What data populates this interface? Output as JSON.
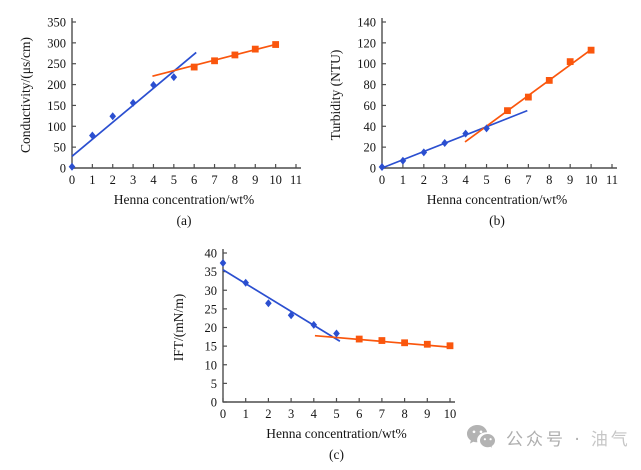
{
  "colors": {
    "low_series": "#2b4fd0",
    "high_series": "#fa560d",
    "axis": "#4d4d4d",
    "text": "#141414",
    "watermark_primary": "#aeaeae",
    "watermark_secondary": "#c6c6c6"
  },
  "watermark": {
    "icon": "wechat-icon",
    "prefix": "公众号 · ",
    "suffix": "油气"
  },
  "chart_data": [
    {
      "id": "a",
      "type": "scatter",
      "caption": "(a)",
      "xlabel": "Henna concentration/wt%",
      "ylabel": "Conductivity/(μs/cm)",
      "xlim": [
        0,
        11
      ],
      "ylim": [
        0,
        350
      ],
      "xticks": [
        0,
        1,
        2,
        3,
        4,
        5,
        6,
        7,
        8,
        9,
        10,
        11
      ],
      "yticks": [
        0,
        50,
        100,
        150,
        200,
        250,
        300,
        350
      ],
      "grid": false,
      "legend": "none",
      "series": [
        {
          "name": "low-concentration-points",
          "marker": "diamond",
          "color": "#2b4fd0",
          "points": [
            [
              0,
              3
            ],
            [
              1,
              78
            ],
            [
              2,
              124
            ],
            [
              3,
              156
            ],
            [
              4,
              199
            ],
            [
              5,
              218
            ]
          ]
        },
        {
          "name": "high-concentration-points",
          "marker": "square",
          "color": "#fa560d",
          "points": [
            [
              6,
              242
            ],
            [
              7,
              257
            ],
            [
              8,
              271
            ],
            [
              9,
              285
            ],
            [
              10,
              296
            ]
          ]
        }
      ],
      "trendlines": [
        {
          "name": "low-region-fit",
          "color": "#2b4fd0",
          "from": [
            0,
            28
          ],
          "to": [
            6.1,
            277
          ]
        },
        {
          "name": "high-region-fit",
          "color": "#fa560d",
          "from": [
            3.95,
            220
          ],
          "to": [
            10.15,
            298
          ]
        }
      ]
    },
    {
      "id": "b",
      "type": "scatter",
      "caption": "(b)",
      "xlabel": "Henna concentration/wt%",
      "ylabel": "Turbidity (NTU)",
      "xlim": [
        0,
        11
      ],
      "ylim": [
        0,
        140
      ],
      "xticks": [
        0,
        1,
        2,
        3,
        4,
        5,
        6,
        7,
        8,
        9,
        10,
        11
      ],
      "yticks": [
        0,
        20,
        40,
        60,
        80,
        100,
        120,
        140
      ],
      "grid": false,
      "legend": "none",
      "series": [
        {
          "name": "low-concentration-points",
          "marker": "diamond",
          "color": "#2b4fd0",
          "points": [
            [
              0,
              1
            ],
            [
              1,
              7
            ],
            [
              2,
              15
            ],
            [
              3,
              24
            ],
            [
              4,
              33
            ],
            [
              5,
              38
            ]
          ]
        },
        {
          "name": "high-concentration-points",
          "marker": "square",
          "color": "#fa560d",
          "points": [
            [
              6,
              55
            ],
            [
              7,
              68
            ],
            [
              8,
              84
            ],
            [
              9,
              102
            ],
            [
              10,
              113
            ]
          ]
        }
      ],
      "trendlines": [
        {
          "name": "low-region-fit",
          "color": "#2b4fd0",
          "from": [
            0,
            0
          ],
          "to": [
            6.95,
            55
          ]
        },
        {
          "name": "high-region-fit",
          "color": "#fa560d",
          "from": [
            3.97,
            25
          ],
          "to": [
            10.1,
            115
          ]
        }
      ]
    },
    {
      "id": "c",
      "type": "scatter",
      "caption": "(c)",
      "xlabel": "Henna concentration/wt%",
      "ylabel": "IFT/(mN/m)",
      "xlim": [
        0,
        10
      ],
      "ylim": [
        0,
        40
      ],
      "xticks": [
        0,
        1,
        2,
        3,
        4,
        5,
        6,
        7,
        8,
        9,
        10
      ],
      "yticks": [
        0,
        5,
        10,
        15,
        20,
        25,
        30,
        35,
        40
      ],
      "grid": false,
      "legend": "none",
      "series": [
        {
          "name": "low-concentration-points",
          "marker": "diamond",
          "color": "#2b4fd0",
          "points": [
            [
              0,
              37.3
            ],
            [
              1,
              32
            ],
            [
              2,
              26.5
            ],
            [
              3,
              23.3
            ],
            [
              4,
              20.7
            ],
            [
              5,
              18.4
            ]
          ]
        },
        {
          "name": "high-concentration-points",
          "marker": "square",
          "color": "#fa560d",
          "points": [
            [
              6,
              16.9
            ],
            [
              7,
              16.5
            ],
            [
              8,
              15.9
            ],
            [
              9,
              15.5
            ],
            [
              10,
              15.1
            ]
          ]
        }
      ],
      "trendlines": [
        {
          "name": "low-region-fit",
          "color": "#2b4fd0",
          "from": [
            0,
            35.5
          ],
          "to": [
            5.15,
            16.3
          ]
        },
        {
          "name": "high-region-fit",
          "color": "#fa560d",
          "from": [
            4.05,
            17.8
          ],
          "to": [
            10.05,
            14.7
          ]
        }
      ]
    }
  ]
}
